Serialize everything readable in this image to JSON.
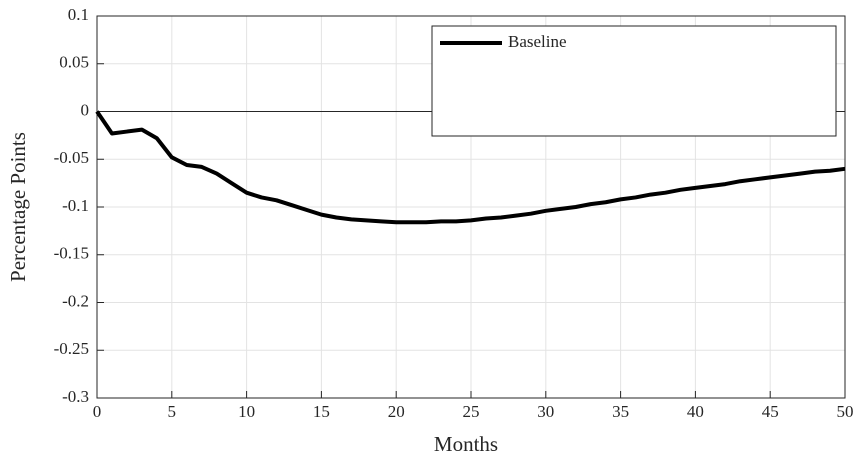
{
  "chart_data": {
    "type": "line",
    "xlabel": "Months",
    "ylabel": "Percentage Points",
    "x": [
      0,
      1,
      2,
      3,
      4,
      5,
      6,
      7,
      8,
      9,
      10,
      11,
      12,
      13,
      14,
      15,
      16,
      17,
      18,
      19,
      20,
      21,
      22,
      23,
      24,
      25,
      26,
      27,
      28,
      29,
      30,
      31,
      32,
      33,
      34,
      35,
      36,
      37,
      38,
      39,
      40,
      41,
      42,
      43,
      44,
      45,
      46,
      47,
      48,
      49,
      50
    ],
    "series": [
      {
        "name": "Baseline",
        "color": "#000000",
        "values": [
          0,
          -0.023,
          -0.021,
          -0.019,
          -0.028,
          -0.048,
          -0.056,
          -0.058,
          -0.065,
          -0.075,
          -0.085,
          -0.09,
          -0.093,
          -0.098,
          -0.103,
          -0.108,
          -0.111,
          -0.113,
          -0.114,
          -0.115,
          -0.116,
          -0.116,
          -0.116,
          -0.115,
          -0.115,
          -0.114,
          -0.112,
          -0.111,
          -0.109,
          -0.107,
          -0.104,
          -0.102,
          -0.1,
          -0.097,
          -0.095,
          -0.092,
          -0.09,
          -0.087,
          -0.085,
          -0.082,
          -0.08,
          -0.078,
          -0.076,
          -0.073,
          -0.071,
          -0.069,
          -0.067,
          -0.065,
          -0.063,
          -0.062,
          -0.06
        ]
      }
    ],
    "xlim": [
      0,
      50
    ],
    "xticks": [
      0,
      5,
      10,
      15,
      20,
      25,
      30,
      35,
      40,
      45,
      50
    ],
    "ylim": [
      -0.3,
      0.1
    ],
    "yticks": [
      0.1,
      0.05,
      0,
      -0.05,
      -0.1,
      -0.15,
      -0.2,
      -0.25,
      -0.3
    ],
    "reference_line": 0,
    "grid": true,
    "legend": "top-right"
  }
}
